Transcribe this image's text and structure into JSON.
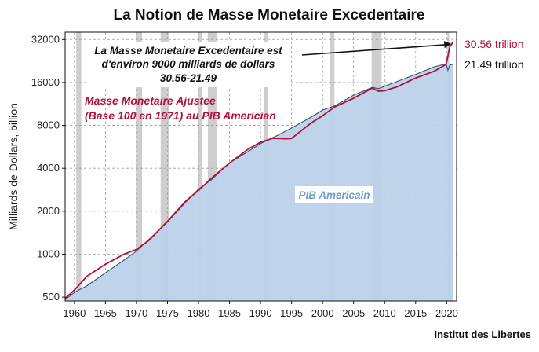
{
  "colors": {
    "money": "#b0103a",
    "gdp_fill": "#bcd1ea",
    "gdp_line": "#34506e",
    "recession": "#c6c6c6",
    "arrow": "#111111"
  },
  "chart_data": {
    "type": "area",
    "title": "La Notion de Masse Monetaire Excedentaire",
    "xlabel": "",
    "ylabel": "Milliards de Dollars, billion",
    "y_scale": "log",
    "xlim": [
      1958.5,
      2021.6
    ],
    "ylim": [
      470,
      36000
    ],
    "x_ticks": [
      1960,
      1965,
      1970,
      1975,
      1980,
      1985,
      1990,
      1995,
      2000,
      2005,
      2010,
      2015,
      2020
    ],
    "x_tick_labels": [
      "1960",
      "1965",
      "1970",
      "1975",
      "1980",
      "1985",
      "1990",
      "1995",
      "2000",
      "2005",
      "2010",
      "2015",
      "2020"
    ],
    "y_ticks": [
      500,
      1000,
      2000,
      4000,
      8000,
      16000,
      32000
    ],
    "y_tick_labels": [
      "500",
      "1000",
      "2000",
      "4000",
      "8000",
      "16000",
      "32000"
    ],
    "grid": true,
    "recessions": [
      [
        1960.3,
        1961.1
      ],
      [
        1969.9,
        1970.9
      ],
      [
        1973.9,
        1975.2
      ],
      [
        1980.0,
        1980.6
      ],
      [
        1981.5,
        1982.9
      ],
      [
        1990.6,
        1991.2
      ],
      [
        2001.2,
        2001.9
      ],
      [
        2007.9,
        2009.5
      ],
      [
        2020.1,
        2020.4
      ]
    ],
    "series": [
      {
        "name": "PIB Americain",
        "style": "area",
        "x": [
          1958.5,
          1960,
          1962,
          1965,
          1968,
          1970,
          1972,
          1975,
          1978,
          1980,
          1982,
          1985,
          1988,
          1990,
          1993,
          1995,
          1998,
          2000,
          2002,
          2005,
          2008,
          2009,
          2010,
          2012,
          2015,
          2018,
          2019.9,
          2020.2,
          2020.5,
          2021
        ],
        "y": [
          480,
          540,
          600,
          740,
          910,
          1050,
          1270,
          1680,
          2330,
          2860,
          3300,
          4370,
          5250,
          5960,
          6900,
          7670,
          9060,
          10250,
          10980,
          13040,
          14770,
          14480,
          15050,
          16250,
          18240,
          20610,
          21600,
          19500,
          21150,
          21490
        ]
      },
      {
        "name": "Masse Monetaire Ajustee (Base 100 en 1971) au PIB Americian",
        "style": "line",
        "x": [
          1958.5,
          1960,
          1962,
          1965,
          1968,
          1970,
          1972,
          1975,
          1978,
          1980,
          1982,
          1985,
          1988,
          1990,
          1992,
          1994,
          1995,
          1998,
          2000,
          2002,
          2005,
          2008,
          2009,
          2010,
          2012,
          2015,
          2018,
          2019.9,
          2020.2,
          2020.5,
          2021
        ],
        "y": [
          490,
          560,
          700,
          850,
          1000,
          1080,
          1250,
          1700,
          2370,
          2800,
          3380,
          4350,
          5450,
          6100,
          6500,
          6450,
          6480,
          8220,
          9360,
          10800,
          12400,
          14620,
          13900,
          14000,
          14900,
          17200,
          19200,
          21400,
          24500,
          28500,
          30560
        ]
      }
    ],
    "annotations": {
      "arrow_text": [
        "La Masse Monetaire Excedentaire est",
        "d'environ 9000 milliards de dollars",
        "30.56-21.49"
      ],
      "money_label": [
        "Masse Monetaire Ajustee",
        "(Base 100 en 1971) au PIB Americian"
      ],
      "gdp_label": "PIB Americain",
      "end_value_money": "30.56 trillion",
      "end_value_gdp": "21.49 trillion"
    },
    "credit": "Institut des Libertes"
  }
}
